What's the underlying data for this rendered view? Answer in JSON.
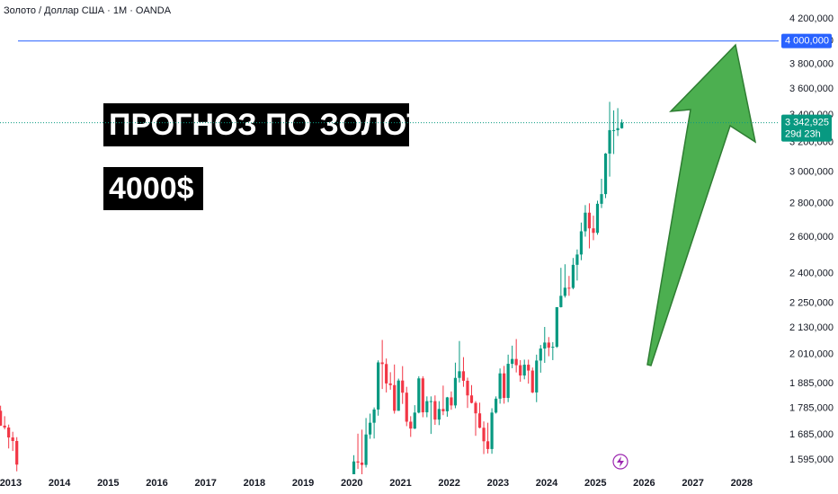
{
  "chart_data": {
    "type": "candlestick",
    "title": "Золото / Доллар США · 1M · OANDA",
    "annotations": [
      "ПРОГНОЗ ПО ЗОЛОТУ",
      "4000$"
    ],
    "log_scale": true,
    "grid": false,
    "up_color": "#089981",
    "down_color": "#f23645",
    "x": [
      "2012-10",
      "2012-11",
      "2012-12",
      "2013-01",
      "2013-02",
      "2020-01",
      "2020-02",
      "2020-03",
      "2020-04",
      "2020-05",
      "2020-06",
      "2020-07",
      "2020-08",
      "2020-09",
      "2020-10",
      "2020-11",
      "2020-12",
      "2021-01",
      "2021-02",
      "2021-03",
      "2021-04",
      "2021-05",
      "2021-06",
      "2021-07",
      "2021-08",
      "2021-09",
      "2021-10",
      "2021-11",
      "2021-12",
      "2022-01",
      "2022-02",
      "2022-03",
      "2022-04",
      "2022-05",
      "2022-06",
      "2022-07",
      "2022-08",
      "2022-09",
      "2022-10",
      "2022-11",
      "2022-12",
      "2023-01",
      "2023-02",
      "2023-03",
      "2023-04",
      "2023-05",
      "2023-06",
      "2023-07",
      "2023-08",
      "2023-09",
      "2023-10",
      "2023-11",
      "2023-12",
      "2024-01",
      "2024-02",
      "2024-03",
      "2024-04",
      "2024-05",
      "2024-06",
      "2024-07",
      "2024-08",
      "2024-09",
      "2024-10",
      "2024-11",
      "2024-12",
      "2025-01",
      "2025-02",
      "2025-03",
      "2025-04",
      "2025-05",
      "2025-06",
      "2025-07"
    ],
    "open": [
      1776,
      1719,
      1712,
      1675,
      1662,
      1517,
      1589,
      1585,
      1577,
      1686,
      1730,
      1781,
      1975,
      1968,
      1886,
      1879,
      1776,
      1898,
      1848,
      1734,
      1708,
      1769,
      1907,
      1770,
      1814,
      1814,
      1742,
      1783,
      1774,
      1829,
      1797,
      1909,
      1937,
      1897,
      1837,
      1807,
      1766,
      1711,
      1661,
      1633,
      1769,
      1824,
      1928,
      1827,
      1969,
      1990,
      1963,
      1919,
      1965,
      1940,
      1849,
      1983,
      2036,
      2063,
      2040,
      2044,
      2230,
      2286,
      2327,
      2326,
      2447,
      2503,
      2634,
      2744,
      2651,
      2625,
      2798,
      2858,
      3124,
      3289,
      3289,
      3303
    ],
    "high": [
      1796,
      1755,
      1723,
      1696,
      1676,
      1611,
      1689,
      1704,
      1748,
      1765,
      1789,
      1984,
      2075,
      1992,
      1933,
      1966,
      1906,
      1959,
      1872,
      1755,
      1798,
      1916,
      1916,
      1833,
      1833,
      1837,
      1814,
      1877,
      1831,
      1853,
      1974,
      2070,
      1998,
      1910,
      1879,
      1814,
      1808,
      1735,
      1730,
      1786,
      1833,
      1949,
      1960,
      2009,
      2049,
      2079,
      1985,
      1987,
      1987,
      1953,
      2009,
      2052,
      2135,
      2088,
      2065,
      2223,
      2431,
      2450,
      2388,
      2484,
      2531,
      2685,
      2790,
      2801,
      2726,
      2817,
      2956,
      3128,
      3500,
      3435,
      3452,
      3368
    ],
    "low": [
      1718,
      1705,
      1635,
      1626,
      1555,
      1517,
      1563,
      1451,
      1568,
      1670,
      1671,
      1757,
      1863,
      1849,
      1860,
      1765,
      1776,
      1803,
      1717,
      1677,
      1706,
      1766,
      1751,
      1751,
      1688,
      1722,
      1721,
      1759,
      1753,
      1780,
      1786,
      1890,
      1872,
      1787,
      1805,
      1681,
      1709,
      1615,
      1617,
      1616,
      1765,
      1804,
      1804,
      1810,
      1950,
      1932,
      1893,
      1903,
      1885,
      1846,
      1810,
      1931,
      1973,
      2002,
      1985,
      2039,
      2228,
      2277,
      2286,
      2319,
      2364,
      2472,
      2603,
      2537,
      2583,
      2614,
      2772,
      2833,
      2970,
      3121,
      3247,
      3300
    ],
    "close": [
      1719,
      1712,
      1675,
      1662,
      1578,
      1589,
      1585,
      1577,
      1686,
      1730,
      1781,
      1975,
      1968,
      1886,
      1879,
      1776,
      1898,
      1848,
      1734,
      1708,
      1769,
      1907,
      1770,
      1814,
      1814,
      1742,
      1783,
      1774,
      1829,
      1797,
      1909,
      1937,
      1897,
      1837,
      1807,
      1766,
      1711,
      1661,
      1633,
      1769,
      1824,
      1928,
      1827,
      1969,
      1990,
      1963,
      1919,
      1965,
      1940,
      1849,
      1983,
      2036,
      2063,
      2040,
      2044,
      2230,
      2286,
      2327,
      2326,
      2447,
      2503,
      2634,
      2744,
      2651,
      2625,
      2798,
      2858,
      3124,
      3289,
      3289,
      3303,
      3343
    ],
    "xlim": [
      2012.78,
      2028.76
    ],
    "xticks": [
      2013,
      2014,
      2015,
      2016,
      2017,
      2018,
      2019,
      2020,
      2021,
      2022,
      2023,
      2024,
      2025,
      2026,
      2027,
      2028
    ],
    "ylim": [
      1545,
      4377
    ],
    "yticks": [
      {
        "value": 1595,
        "label": "1 595,000"
      },
      {
        "value": 1685,
        "label": "1 685,000"
      },
      {
        "value": 1785,
        "label": "1 785,000"
      },
      {
        "value": 1885,
        "label": "1 885,000"
      },
      {
        "value": 2010,
        "label": "2 010,000"
      },
      {
        "value": 2130,
        "label": "2 130,000"
      },
      {
        "value": 2250,
        "label": "2 250,000"
      },
      {
        "value": 2400,
        "label": "2 400,000"
      },
      {
        "value": 2600,
        "label": "2 600,000"
      },
      {
        "value": 2800,
        "label": "2 800,000"
      },
      {
        "value": 3000,
        "label": "3 000,000"
      },
      {
        "value": 3200,
        "label": "3 200,000"
      },
      {
        "value": 3400,
        "label": "3 400,000"
      },
      {
        "value": 3600,
        "label": "3 600,000"
      },
      {
        "value": 3800,
        "label": "3 800,000"
      },
      {
        "value": 4000,
        "label": "4 000,000"
      },
      {
        "value": 4200,
        "label": "4 200,000"
      }
    ],
    "current_price": 3342.925,
    "current_label": "3 342,925",
    "countdown": "29d 23h",
    "current_color": "#089981",
    "hline": {
      "value": 4000,
      "label": "4 000,000",
      "color": "#2962ff"
    }
  }
}
